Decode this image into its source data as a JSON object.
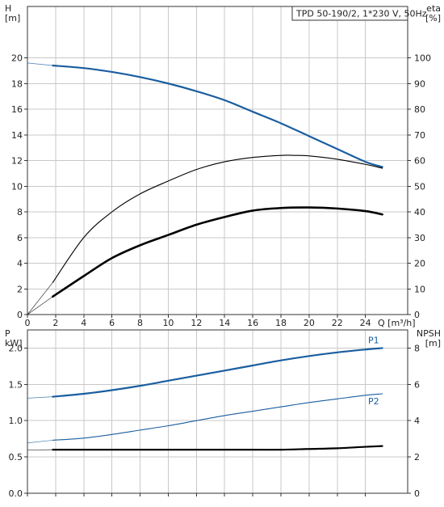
{
  "chart_data": [
    {
      "type": "line",
      "title": "TPD 50-190/2, 1*230 V, 50Hz",
      "xlabel": "Q [m³/h]",
      "ylabel_left": "H\n[m]",
      "ylabel_right": "eta\n[%]",
      "xlim": [
        0,
        27
      ],
      "ylim_left": [
        0,
        24
      ],
      "ylim_right": [
        0,
        120
      ],
      "x_ticks": [
        0,
        2,
        4,
        6,
        8,
        10,
        12,
        14,
        16,
        18,
        20,
        22,
        24
      ],
      "y_ticks_left": [
        0,
        2,
        4,
        6,
        8,
        10,
        12,
        14,
        16,
        18,
        20
      ],
      "y_ticks_right": [
        0,
        10,
        20,
        30,
        40,
        50,
        60,
        70,
        80,
        90,
        100
      ],
      "grid": true,
      "series": [
        {
          "axis": "left",
          "color": "#1a5ea0",
          "width": 2.2,
          "x": [
            1.8,
            4,
            6,
            8,
            10,
            12,
            14,
            16,
            18,
            20,
            22,
            24,
            25.2
          ],
          "y": [
            19.4,
            19.2,
            18.9,
            18.5,
            18.0,
            17.4,
            16.7,
            15.8,
            14.9,
            13.9,
            12.9,
            11.9,
            11.5
          ]
        },
        {
          "axis": "right",
          "color": "#000000",
          "width": 1.1,
          "x": [
            1.8,
            4,
            6,
            8,
            10,
            12,
            14,
            16,
            18,
            19,
            20,
            22,
            24,
            25.2
          ],
          "y": [
            12.5,
            30,
            40,
            47,
            52,
            56.5,
            59.5,
            61.2,
            62,
            62,
            61.8,
            60.5,
            58.5,
            57
          ]
        },
        {
          "axis": "right",
          "color": "#000000",
          "width": 2.6,
          "x": [
            1.8,
            4,
            6,
            8,
            10,
            12,
            14,
            16,
            18,
            20,
            22,
            24,
            25.2
          ],
          "y": [
            7,
            15,
            22,
            27,
            31,
            35,
            38,
            40.5,
            41.5,
            41.7,
            41.3,
            40.3,
            39
          ]
        }
      ]
    },
    {
      "type": "line",
      "title": "",
      "xlabel": "",
      "ylabel_left": "P\nkW]",
      "ylabel_right": "NPSH\n[m]",
      "xlim": [
        0,
        27
      ],
      "ylim_left": [
        0,
        2.25
      ],
      "ylim_right": [
        0,
        9
      ],
      "x_ticks": [
        0,
        2,
        4,
        6,
        8,
        10,
        12,
        14,
        16,
        18,
        20,
        22,
        24
      ],
      "y_ticks_left": [
        "0.0",
        "0.5",
        "1.0",
        "1.5",
        "2.0"
      ],
      "y_ticks_right": [
        0,
        2,
        4,
        6,
        8
      ],
      "grid": true,
      "series": [
        {
          "name": "P1",
          "axis": "left",
          "color": "#1a5ea0",
          "width": 2.2,
          "x": [
            1.8,
            4,
            6,
            8,
            10,
            12,
            14,
            16,
            18,
            20,
            22,
            24,
            25.2
          ],
          "y": [
            1.33,
            1.37,
            1.42,
            1.48,
            1.55,
            1.62,
            1.69,
            1.76,
            1.83,
            1.89,
            1.94,
            1.98,
            2.0
          ]
        },
        {
          "name": "P2",
          "axis": "left",
          "color": "#1a5ea0",
          "width": 1.1,
          "x": [
            1.8,
            4,
            6,
            8,
            10,
            12,
            14,
            16,
            18,
            20,
            22,
            24,
            25.2
          ],
          "y": [
            0.73,
            0.76,
            0.81,
            0.87,
            0.93,
            1.0,
            1.07,
            1.13,
            1.19,
            1.25,
            1.3,
            1.35,
            1.37
          ]
        },
        {
          "axis": "left",
          "color": "#000000",
          "width": 2.2,
          "x": [
            1.8,
            4,
            8,
            12,
            16,
            18,
            20,
            22,
            24,
            25.2
          ],
          "y": [
            0.6,
            0.6,
            0.6,
            0.6,
            0.6,
            0.6,
            0.61,
            0.62,
            0.64,
            0.65
          ]
        }
      ]
    }
  ]
}
